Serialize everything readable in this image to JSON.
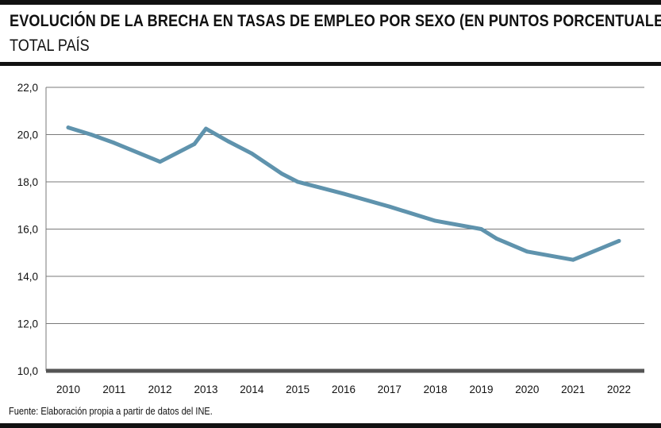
{
  "header": {
    "title": "EVOLUCIÓN DE LA BRECHA EN TASAS DE EMPLEO POR SEXO (EN PUNTOS PORCENTUALES)",
    "subtitle": "TOTAL PAÍS"
  },
  "footer": {
    "source": "Fuente: Elaboración propia a partir de datos del INE."
  },
  "colors": {
    "line": "#5f93ad",
    "grid": "#7a7a7a",
    "baseline": "#555555",
    "rules": "#111111"
  },
  "chart_data": {
    "type": "line",
    "title": "EVOLUCIÓN DE LA BRECHA EN TASAS DE EMPLEO POR SEXO (EN PUNTOS PORCENTUALES)",
    "subtitle": "TOTAL PAÍS",
    "xlabel": "",
    "ylabel": "",
    "ylim": [
      10,
      22
    ],
    "yticks": [
      "10,0",
      "12,0",
      "14,0",
      "16,0",
      "18,0",
      "20,0",
      "22,0"
    ],
    "xticks": [
      "2010",
      "2011",
      "2012",
      "2013",
      "2014",
      "2015",
      "2016",
      "2017",
      "2018",
      "2019",
      "2020",
      "2021",
      "2022"
    ],
    "grid": true,
    "legend": "none",
    "series": [
      {
        "x": [
          2010,
          2010.5,
          2011,
          2012,
          2012.75,
          2013,
          2013.5,
          2014,
          2014.65,
          2015,
          2015.5,
          2016,
          2017,
          2018,
          2019,
          2019.33,
          2020,
          2021,
          2022
        ],
        "values": [
          20.3,
          20.0,
          19.65,
          18.85,
          19.6,
          20.25,
          19.7,
          19.2,
          18.35,
          18.0,
          17.75,
          17.5,
          16.95,
          16.35,
          16.0,
          15.6,
          15.05,
          14.7,
          15.5
        ]
      }
    ]
  }
}
